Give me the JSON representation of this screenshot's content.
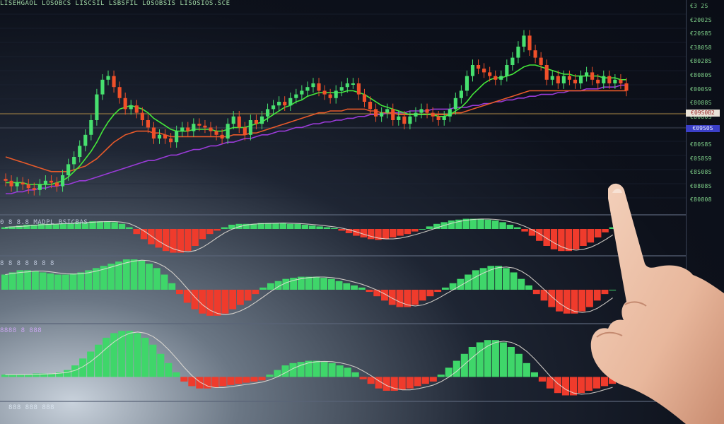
{
  "header": {
    "labels": "LISEHGAOL  LOSOBCS  LISCSIL  LSBSFIL  LOSOBSIS  LISOSIOS.SCE"
  },
  "price_axis": {
    "ticks": [
      "€3 2S",
      "€2002S",
      "€20S85",
      "€38058",
      "€8028S",
      "€8080S",
      "€000S9",
      "€8O88S",
      "€8080S",
      "€03S9S",
      "€80S8S",
      "€0S8S9",
      "€8S08S",
      "€0808S",
      "€80808"
    ],
    "tag_last": "€09S0B2",
    "tag_ma": "€09S0S"
  },
  "panels": {
    "macd_label": "0 8  8.8  MADPL  BSICBAS",
    "osc_label": "8 8  8  8  8  8  8",
    "vol_label": "8888 8 888",
    "foot_label": "888  888  888"
  },
  "colors": {
    "up": "#3fd66a",
    "down": "#ef3b2c",
    "up_body": "#47e06f",
    "down_body": "#f0502a",
    "ma_fast": "#44e83a",
    "ma_mid": "#e85a2a",
    "ma_slow": "#9a3bd8",
    "ma_white": "#e6e1d8",
    "ref_line": "#d8a848"
  },
  "chart_data": [
    {
      "type": "candlestick",
      "title": "",
      "x_count": 110,
      "ylim": [
        0,
        100
      ],
      "open": [
        18,
        17,
        14,
        16,
        15,
        13,
        12,
        15,
        17,
        16,
        14,
        20,
        26,
        30,
        36,
        42,
        50,
        64,
        72,
        74,
        68,
        62,
        56,
        58,
        54,
        50,
        46,
        40,
        42,
        40,
        38,
        44,
        46,
        44,
        48,
        47,
        46,
        44,
        42,
        40,
        48,
        52,
        46,
        42,
        50,
        48,
        52,
        56,
        58,
        60,
        58,
        62,
        64,
        66,
        68,
        70,
        66,
        64,
        62,
        66,
        68,
        70,
        70,
        64,
        60,
        56,
        52,
        54,
        56,
        50,
        52,
        48,
        52,
        54,
        56,
        54,
        52,
        50,
        52,
        56,
        62,
        66,
        74,
        80,
        78,
        76,
        74,
        72,
        74,
        80,
        84,
        90,
        96,
        88,
        84,
        80,
        72,
        74,
        70,
        74,
        72,
        70,
        74,
        76,
        72,
        70,
        74,
        70,
        72,
        70
      ],
      "close": [
        17,
        14,
        16,
        15,
        13,
        12,
        15,
        17,
        16,
        14,
        20,
        26,
        30,
        36,
        42,
        50,
        64,
        72,
        74,
        68,
        62,
        56,
        58,
        54,
        50,
        46,
        40,
        42,
        40,
        38,
        44,
        46,
        44,
        48,
        47,
        46,
        44,
        42,
        40,
        48,
        52,
        46,
        42,
        50,
        48,
        52,
        56,
        58,
        60,
        58,
        62,
        64,
        66,
        68,
        70,
        66,
        64,
        62,
        66,
        68,
        70,
        70,
        64,
        60,
        56,
        52,
        54,
        56,
        50,
        52,
        48,
        52,
        54,
        56,
        54,
        52,
        50,
        52,
        56,
        62,
        66,
        74,
        80,
        78,
        76,
        74,
        72,
        74,
        80,
        84,
        90,
        96,
        88,
        84,
        80,
        72,
        74,
        70,
        74,
        72,
        70,
        74,
        76,
        72,
        70,
        74,
        70,
        72,
        70,
        66
      ],
      "ma_fast": [
        16,
        16,
        16,
        16,
        15,
        15,
        15,
        15,
        15,
        16,
        17,
        19,
        22,
        25,
        29,
        33,
        38,
        44,
        49,
        53,
        56,
        57,
        58,
        57,
        56,
        54,
        51,
        49,
        47,
        45,
        44,
        44,
        44,
        45,
        45,
        45,
        45,
        44,
        44,
        45,
        46,
        46,
        46,
        47,
        48,
        49,
        51,
        53,
        55,
        57,
        58,
        60,
        61,
        63,
        64,
        65,
        65,
        65,
        65,
        65,
        66,
        66,
        65,
        64,
        62,
        60,
        58,
        57,
        56,
        55,
        54,
        53,
        53,
        53,
        53,
        53,
        52,
        52,
        53,
        55,
        57,
        60,
        64,
        67,
        70,
        72,
        73,
        73,
        74,
        75,
        77,
        79,
        80,
        80,
        79,
        78,
        77,
        76,
        75,
        75,
        74,
        74,
        74,
        74,
        74,
        73,
        73,
        73,
        72,
        72
      ],
      "ma_mid": [
        30,
        29,
        28,
        27,
        26,
        25,
        24,
        23,
        22,
        22,
        22,
        22,
        23,
        24,
        25,
        27,
        29,
        32,
        35,
        38,
        40,
        42,
        43,
        44,
        44,
        44,
        43,
        43,
        42,
        41,
        41,
        41,
        41,
        41,
        41,
        41,
        41,
        41,
        41,
        41,
        42,
        42,
        42,
        43,
        43,
        44,
        45,
        46,
        47,
        48,
        49,
        50,
        51,
        52,
        53,
        54,
        54,
        55,
        55,
        55,
        56,
        56,
        56,
        56,
        55,
        55,
        54,
        54,
        54,
        53,
        53,
        53,
        53,
        53,
        53,
        53,
        53,
        53,
        53,
        54,
        54,
        55,
        56,
        57,
        58,
        59,
        60,
        61,
        62,
        63,
        64,
        65,
        66,
        66,
        66,
        66,
        66,
        66,
        66,
        66,
        66,
        66,
        66,
        66,
        66,
        66,
        66,
        66,
        66,
        66
      ],
      "ma_slow": [
        10,
        10,
        11,
        11,
        12,
        12,
        13,
        13,
        14,
        14,
        15,
        15,
        16,
        17,
        17,
        18,
        19,
        20,
        21,
        22,
        23,
        24,
        25,
        26,
        27,
        28,
        28,
        29,
        30,
        31,
        31,
        32,
        33,
        34,
        34,
        35,
        36,
        36,
        37,
        38,
        38,
        39,
        40,
        40,
        41,
        42,
        42,
        43,
        44,
        44,
        45,
        46,
        46,
        47,
        48,
        48,
        49,
        49,
        50,
        50,
        51,
        51,
        52,
        52,
        53,
        53,
        53,
        54,
        54,
        54,
        54,
        55,
        55,
        55,
        55,
        56,
        56,
        56,
        56,
        57,
        57,
        57,
        58,
        58,
        59,
        59,
        60,
        60,
        61,
        61,
        62,
        62,
        63,
        63,
        64,
        64,
        64,
        65,
        65,
        66,
        66,
        66,
        67,
        67,
        67,
        68,
        68,
        68,
        69,
        69
      ],
      "xlabel": "",
      "ylabel": ""
    },
    {
      "type": "bar",
      "title": "",
      "values": [
        2,
        3,
        4,
        5,
        5,
        6,
        6,
        6,
        7,
        7,
        8,
        8,
        9,
        9,
        9,
        8,
        6,
        2,
        -6,
        -12,
        -18,
        -22,
        -26,
        -28,
        -28,
        -26,
        -20,
        -12,
        -6,
        -2,
        2,
        5,
        6,
        6,
        6,
        7,
        7,
        7,
        7,
        6,
        6,
        5,
        4,
        3,
        2,
        1,
        -2,
        -5,
        -8,
        -10,
        -12,
        -13,
        -12,
        -10,
        -8,
        -6,
        -3,
        0,
        3,
        6,
        8,
        10,
        11,
        12,
        12,
        12,
        11,
        10,
        8,
        5,
        2,
        -3,
        -8,
        -14,
        -20,
        -24,
        -26,
        -26,
        -24,
        -20,
        -16,
        -10,
        -4,
        2
      ],
      "ylim": [
        -30,
        15
      ]
    },
    {
      "type": "bar",
      "title": "",
      "values": [
        14,
        16,
        18,
        18,
        17,
        16,
        15,
        14,
        14,
        15,
        16,
        18,
        20,
        22,
        24,
        26,
        28,
        28,
        27,
        24,
        20,
        14,
        6,
        -4,
        -12,
        -18,
        -22,
        -24,
        -24,
        -22,
        -18,
        -14,
        -10,
        -4,
        2,
        6,
        8,
        10,
        11,
        12,
        12,
        12,
        11,
        10,
        8,
        6,
        4,
        2,
        -2,
        -6,
        -10,
        -14,
        -16,
        -16,
        -14,
        -10,
        -6,
        -2,
        2,
        6,
        10,
        14,
        18,
        20,
        22,
        22,
        20,
        16,
        10,
        4,
        -4,
        -10,
        -16,
        -20,
        -22,
        -22,
        -20,
        -16,
        -10,
        -4,
        0
      ],
      "ylim": [
        -30,
        30
      ]
    },
    {
      "type": "bar",
      "title": "",
      "values": [
        2,
        2,
        2,
        2,
        3,
        3,
        3,
        4,
        6,
        10,
        16,
        22,
        28,
        34,
        38,
        40,
        40,
        38,
        34,
        28,
        20,
        12,
        4,
        -4,
        -8,
        -10,
        -10,
        -9,
        -8,
        -7,
        -6,
        -5,
        -4,
        -3,
        2,
        6,
        10,
        12,
        13,
        14,
        14,
        13,
        12,
        10,
        8,
        4,
        -2,
        -6,
        -10,
        -12,
        -12,
        -11,
        -10,
        -8,
        -6,
        -4,
        2,
        8,
        14,
        20,
        26,
        30,
        32,
        32,
        30,
        26,
        20,
        12,
        4,
        -4,
        -10,
        -14,
        -16,
        -16,
        -14,
        -12,
        -10,
        -8,
        -6
      ],
      "ylim": [
        -20,
        45
      ]
    }
  ]
}
